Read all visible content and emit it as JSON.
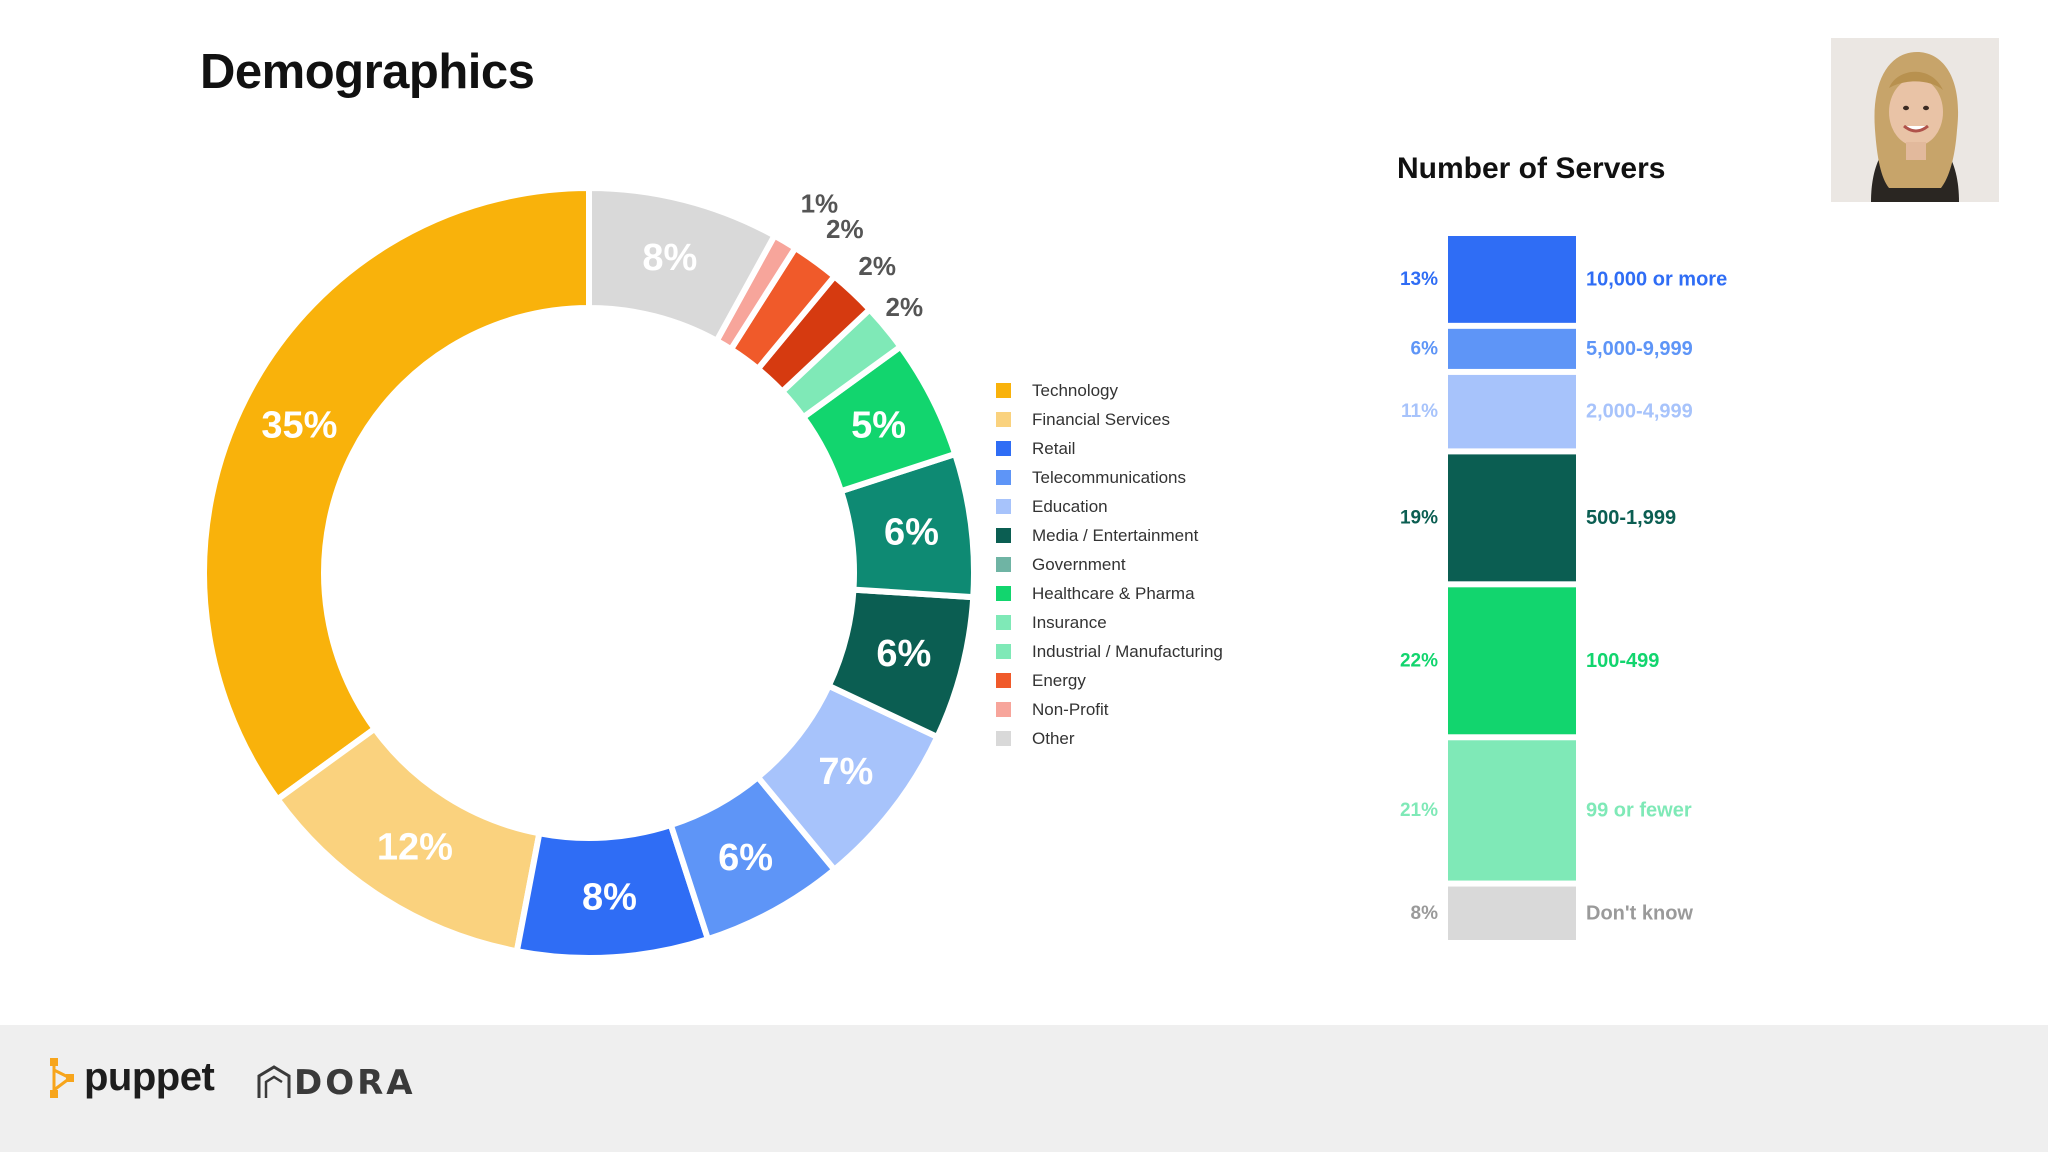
{
  "page": {
    "title": "Demographics"
  },
  "chart_data": [
    {
      "type": "pie",
      "variant": "donut",
      "title": "",
      "legend_placement": "right",
      "slices": [
        {
          "label": "Technology",
          "value": 35,
          "label_text": "35%",
          "color": "#F9B20B"
        },
        {
          "label": "Financial Services",
          "value": 12,
          "label_text": "12%",
          "color": "#FAD27E"
        },
        {
          "label": "Retail",
          "value": 8,
          "label_text": "8%",
          "color": "#2F6DF5"
        },
        {
          "label": "Telecommunications",
          "value": 6,
          "label_text": "6%",
          "color": "#5E95F7"
        },
        {
          "label": "Education",
          "value": 7,
          "label_text": "7%",
          "color": "#A7C3FB"
        },
        {
          "label": "Media / Entertainment",
          "value": 6,
          "label_text": "6%",
          "color": "#0B5E52"
        },
        {
          "label": "Government",
          "value": 6,
          "label_text": "6%",
          "color": "#0E8A73"
        },
        {
          "label": "Healthcare & Pharma",
          "value": 5,
          "label_text": "5%",
          "color": "#12D56E"
        },
        {
          "label": "Insurance",
          "value": 2,
          "label_text": "2%",
          "color": "#7FE9B7"
        },
        {
          "label": "Industrial / Manufacturing",
          "value": 2,
          "label_text": "2%",
          "color": "#D63A10"
        },
        {
          "label": "Energy",
          "value": 2,
          "label_text": "2%",
          "color": "#F05A2A"
        },
        {
          "label": "Non-Profit",
          "value": 1,
          "label_text": "1%",
          "color": "#F7A59B"
        },
        {
          "label": "Other",
          "value": 8,
          "label_text": "8%",
          "color": "#D9D9D9"
        }
      ],
      "legend": [
        {
          "label": "Technology",
          "color": "#F9B20B"
        },
        {
          "label": "Financial Services",
          "color": "#FAD27E"
        },
        {
          "label": "Retail",
          "color": "#2F6DF5"
        },
        {
          "label": "Telecommunications",
          "color": "#5E95F7"
        },
        {
          "label": "Education",
          "color": "#A7C3FB"
        },
        {
          "label": "Media / Entertainment",
          "color": "#0B5E52"
        },
        {
          "label": "Government",
          "color": "#6FB4A4"
        },
        {
          "label": "Healthcare & Pharma",
          "color": "#12D56E"
        },
        {
          "label": "Insurance",
          "color": "#7FE9B7"
        },
        {
          "label": "Industrial / Manufacturing",
          "color": "#7FE9B7"
        },
        {
          "label": "Energy",
          "color": "#F05A2A"
        },
        {
          "label": "Non-Profit",
          "color": "#F7A59B"
        },
        {
          "label": "Other",
          "color": "#D9D9D9"
        }
      ]
    },
    {
      "type": "bar",
      "variant": "stacked-column",
      "title": "Number of Servers",
      "categories": [
        "10,000 or more",
        "5,000-9,999",
        "2,000-4,999",
        "500-1,999",
        "100-499",
        "99 or fewer",
        "Don't know"
      ],
      "values": [
        13,
        6,
        11,
        19,
        22,
        21,
        8
      ],
      "value_labels": [
        "13%",
        "6%",
        "11%",
        "19%",
        "22%",
        "21%",
        "8%"
      ],
      "colors": [
        "#2F6DF5",
        "#5E95F7",
        "#A7C3FB",
        "#0B5E52",
        "#12D56E",
        "#7FE9B7",
        "#D9D9D9"
      ],
      "text_colors": [
        "#2F6DF5",
        "#5E95F7",
        "#A7C3FB",
        "#0B5E52",
        "#12D56E",
        "#7FE9B7",
        "#9A9A9A"
      ]
    }
  ],
  "footer": {
    "puppet_logo": "puppet",
    "dora_logo": "DORA"
  }
}
